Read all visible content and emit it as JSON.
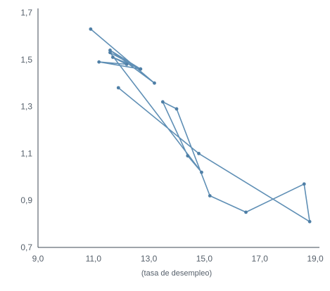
{
  "chart_data": {
    "type": "line",
    "title": "",
    "xlabel": "(tasa de desempleo)",
    "ylabel": "",
    "xlim": [
      9.0,
      19.0
    ],
    "ylim": [
      0.7,
      1.7
    ],
    "x_ticks": [
      "9,0",
      "11,0",
      "13,0",
      "15,0",
      "17,0",
      "19,0"
    ],
    "x_tick_values": [
      9.0,
      11.0,
      13.0,
      15.0,
      17.0,
      19.0
    ],
    "y_ticks": [
      "0,7",
      "0,9",
      "1,1",
      "1,3",
      "1,5",
      "1,7"
    ],
    "y_tick_values": [
      0.7,
      0.9,
      1.1,
      1.3,
      1.5,
      1.7
    ],
    "grid": false,
    "colors": {
      "line": "#5f8fb5",
      "point": "#4f7fa6",
      "axis": "#3f4a55",
      "text": "#555f6a"
    },
    "series": [
      {
        "x": [
          10.9,
          13.2,
          11.6,
          12.7,
          11.2,
          12.2,
          11.7,
          12.7,
          11.6,
          14.9,
          14.4,
          13.5,
          14.0,
          15.2,
          16.5,
          18.6,
          18.8,
          14.8,
          11.9
        ],
        "y": [
          1.63,
          1.4,
          1.54,
          1.46,
          1.49,
          1.48,
          1.51,
          1.46,
          1.53,
          1.02,
          1.09,
          1.32,
          1.29,
          0.92,
          0.85,
          0.97,
          0.81,
          1.1,
          1.38
        ]
      }
    ]
  }
}
